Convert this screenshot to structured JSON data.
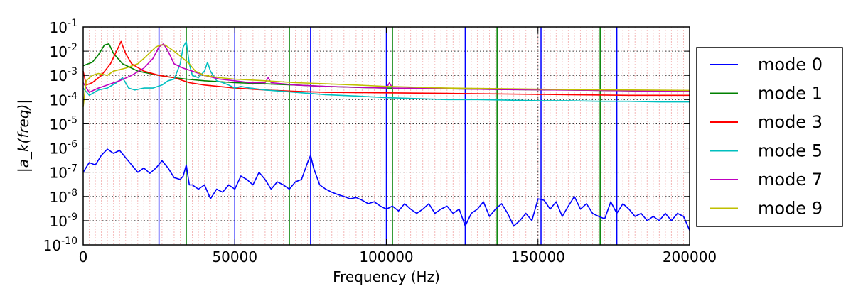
{
  "chart_data": {
    "type": "line",
    "xlabel": "Frequency (Hz)",
    "ylabel": "|a_k(freq)|",
    "xlim": [
      0,
      200000
    ],
    "ylim": [
      1e-10,
      0.1
    ],
    "yscale": "log",
    "grid": true,
    "legend_position": "right, outside plot",
    "x_ticks": [
      {
        "value": 0,
        "label": "0"
      },
      {
        "value": 50000,
        "label": "50000"
      },
      {
        "value": 100000,
        "label": "100000"
      },
      {
        "value": 150000,
        "label": "150000"
      },
      {
        "value": 200000,
        "label": "200000"
      }
    ],
    "y_ticks": [
      {
        "value": 1e-10,
        "base": "10",
        "exp": "-10"
      },
      {
        "value": 1e-09,
        "base": "10",
        "exp": "-9"
      },
      {
        "value": 1e-08,
        "base": "10",
        "exp": "-8"
      },
      {
        "value": 1e-07,
        "base": "10",
        "exp": "-7"
      },
      {
        "value": 1e-06,
        "base": "10",
        "exp": "-6"
      },
      {
        "value": 1e-05,
        "base": "10",
        "exp": "-5"
      },
      {
        "value": 0.0001,
        "base": "10",
        "exp": "-4"
      },
      {
        "value": 0.001,
        "base": "10",
        "exp": "-3"
      },
      {
        "value": 0.01,
        "base": "10",
        "exp": "-2"
      },
      {
        "value": 0.1,
        "base": "10",
        "exp": "-1"
      }
    ],
    "harmonic_lines": [
      {
        "series": "mode 0",
        "x": [
          25000,
          50000,
          75000,
          100000,
          126000,
          151000,
          176000
        ]
      },
      {
        "series": "mode 1",
        "x": [
          34000,
          68000,
          102000,
          136500,
          170500
        ]
      }
    ],
    "series": [
      {
        "name": "mode 0",
        "color": "#0000ff",
        "x": [
          0,
          2000,
          4000,
          6000,
          8000,
          10000,
          12000,
          14000,
          16000,
          18000,
          20000,
          22000,
          24000,
          26000,
          28000,
          30000,
          32000,
          33000,
          34000,
          35000,
          36000,
          38000,
          40000,
          42000,
          44000,
          46000,
          48000,
          50000,
          52000,
          54000,
          56000,
          58000,
          60000,
          62000,
          64000,
          66000,
          68000,
          70000,
          72000,
          74000,
          75000,
          76000,
          78000,
          80000,
          82000,
          84000,
          86000,
          88000,
          90000,
          92000,
          94000,
          96000,
          98000,
          100000,
          102000,
          104000,
          106000,
          108000,
          110000,
          112000,
          114000,
          116000,
          118000,
          120000,
          122000,
          124000,
          126000,
          128000,
          130000,
          132000,
          134000,
          136000,
          138000,
          140000,
          142000,
          144000,
          146000,
          148000,
          150000,
          152000,
          154000,
          156000,
          158000,
          160000,
          162000,
          164000,
          166000,
          168000,
          170000,
          172000,
          174000,
          176000,
          178000,
          180000,
          182000,
          184000,
          186000,
          188000,
          190000,
          192000,
          194000,
          196000,
          198000,
          200000
        ],
        "y": [
          1e-07,
          2.5e-07,
          2e-07,
          5e-07,
          9e-07,
          6e-07,
          8e-07,
          4e-07,
          2e-07,
          1e-07,
          1.5e-07,
          9e-08,
          1.5e-07,
          3e-07,
          1.5e-07,
          6e-08,
          5e-08,
          7e-08,
          2e-07,
          3e-08,
          3e-08,
          2e-08,
          3e-08,
          8e-09,
          2e-08,
          1.5e-08,
          3e-08,
          2e-08,
          7e-08,
          5e-08,
          3e-08,
          1e-07,
          5e-08,
          2e-08,
          4e-08,
          3e-08,
          2e-08,
          4e-08,
          5e-08,
          2.5e-07,
          5e-07,
          1.5e-07,
          3e-08,
          2e-08,
          1.5e-08,
          1.2e-08,
          1e-08,
          8e-09,
          9e-09,
          7e-09,
          5e-09,
          6e-09,
          4e-09,
          3e-09,
          4e-09,
          2.5e-09,
          5e-09,
          3e-09,
          2e-09,
          3e-09,
          5e-09,
          2e-09,
          3e-09,
          4e-09,
          2e-09,
          3e-09,
          6e-10,
          2e-09,
          3e-09,
          6e-09,
          1.5e-09,
          3e-09,
          5e-09,
          2e-09,
          6e-10,
          1e-09,
          2e-09,
          1e-09,
          8e-09,
          7e-09,
          3e-09,
          6e-09,
          1.5e-09,
          4e-09,
          1e-08,
          3e-09,
          5e-09,
          2e-09,
          1.5e-09,
          1.2e-09,
          6e-09,
          2e-09,
          5e-09,
          3e-09,
          1.5e-09,
          2e-09,
          1e-09,
          1.5e-09,
          1e-09,
          2e-09,
          1e-09,
          2e-09,
          1.5e-09,
          4e-10
        ],
        "style": "solid"
      },
      {
        "name": "mode 1",
        "color": "#008000",
        "x": [
          0,
          3000,
          5000,
          7000,
          8500,
          10000,
          13000,
          18000,
          25000,
          30000,
          34000,
          40000,
          50000,
          60000,
          70000,
          80000,
          90000,
          100000,
          120000,
          140000,
          160000,
          180000,
          200000
        ],
        "y": [
          0.0025,
          0.0035,
          0.007,
          0.018,
          0.02,
          0.008,
          0.003,
          0.0015,
          0.001,
          0.0008,
          0.0007,
          0.0006,
          0.0005,
          0.00045,
          0.0004,
          0.00035,
          0.00032,
          0.0003,
          0.00028,
          0.00026,
          0.00025,
          0.00023,
          0.00022
        ],
        "style": "solid"
      },
      {
        "name": "mode 3",
        "color": "#ff0000",
        "x": [
          0,
          1000,
          3000,
          6000,
          9000,
          11000,
          12500,
          14000,
          16000,
          20000,
          25000,
          30000,
          35000,
          40000,
          50000,
          60000,
          70000,
          80000,
          100000,
          120000,
          140000,
          160000,
          180000,
          200000
        ],
        "y": [
          0.0015,
          0.0004,
          0.0005,
          0.001,
          0.003,
          0.01,
          0.025,
          0.008,
          0.003,
          0.0015,
          0.001,
          0.0008,
          0.0005,
          0.0004,
          0.0003,
          0.00025,
          0.00022,
          0.0002,
          0.00019,
          0.00018,
          0.00017,
          0.00016,
          0.00015,
          0.00015
        ],
        "style": "solid"
      },
      {
        "name": "mode 5",
        "color": "#00bfbf",
        "x": [
          0,
          2000,
          5000,
          8000,
          11000,
          13000,
          15000,
          17000,
          20000,
          23000,
          26000,
          28000,
          30000,
          32000,
          33000,
          34000,
          35000,
          36000,
          38000,
          40000,
          41000,
          42000,
          44000,
          46000,
          48000,
          50000,
          52000,
          55000,
          60000,
          70000,
          80000,
          90000,
          100000,
          110000,
          120000,
          130000,
          140000,
          150000,
          160000,
          170000,
          180000,
          190000,
          200000
        ],
        "y": [
          0.0003,
          0.00015,
          0.00025,
          0.0003,
          0.0005,
          0.0008,
          0.0003,
          0.00025,
          0.0003,
          0.0003,
          0.0004,
          0.0006,
          0.0007,
          0.003,
          0.015,
          0.025,
          0.003,
          0.001,
          0.0008,
          0.0015,
          0.0035,
          0.0015,
          0.0006,
          0.0005,
          0.0004,
          0.0003,
          0.00035,
          0.0003,
          0.00025,
          0.0002,
          0.00016,
          0.00014,
          0.00012,
          0.00011,
          0.0001,
          0.0001,
          9.5e-05,
          9e-05,
          9e-05,
          8.5e-05,
          8.5e-05,
          8e-05,
          8e-05
        ],
        "style": "solid"
      },
      {
        "name": "mode 7",
        "color": "#bf00bf",
        "x": [
          0,
          2000,
          5000,
          8000,
          12000,
          16000,
          20000,
          23000,
          25000,
          26500,
          28000,
          30000,
          33000,
          36000,
          40000,
          45000,
          50000,
          55000,
          60000,
          61000,
          62000,
          70000,
          80000,
          100000,
          101000,
          102000,
          120000,
          140000,
          160000,
          180000,
          200000
        ],
        "y": [
          0.0005,
          0.0002,
          0.0003,
          0.0004,
          0.0006,
          0.001,
          0.002,
          0.005,
          0.015,
          0.02,
          0.01,
          0.003,
          0.002,
          0.0015,
          0.001,
          0.0007,
          0.0006,
          0.0005,
          0.0005,
          0.0008,
          0.0005,
          0.0004,
          0.00035,
          0.0003,
          0.0005,
          0.0003,
          0.00028,
          0.00026,
          0.00025,
          0.00023,
          0.00022
        ],
        "style": "solid"
      },
      {
        "name": "mode 9",
        "color": "#bfbf00",
        "x": [
          0,
          1000,
          3000,
          5000,
          8000,
          10000,
          14000,
          18000,
          20000,
          24000,
          25500,
          27000,
          30000,
          33000,
          35000,
          37000,
          40000,
          45000,
          50000,
          60000,
          70000,
          80000,
          90000,
          100000,
          120000,
          140000,
          160000,
          180000,
          200000
        ],
        "y": [
          5e-05,
          0.0006,
          0.001,
          0.0012,
          0.001,
          0.0015,
          0.002,
          0.003,
          0.005,
          0.015,
          0.018,
          0.018,
          0.01,
          0.005,
          0.003,
          0.0015,
          0.001,
          0.0008,
          0.0007,
          0.0006,
          0.0005,
          0.00045,
          0.0004,
          0.00035,
          0.0003,
          0.00028,
          0.00026,
          0.00025,
          0.00024
        ],
        "style": "solid"
      }
    ]
  }
}
